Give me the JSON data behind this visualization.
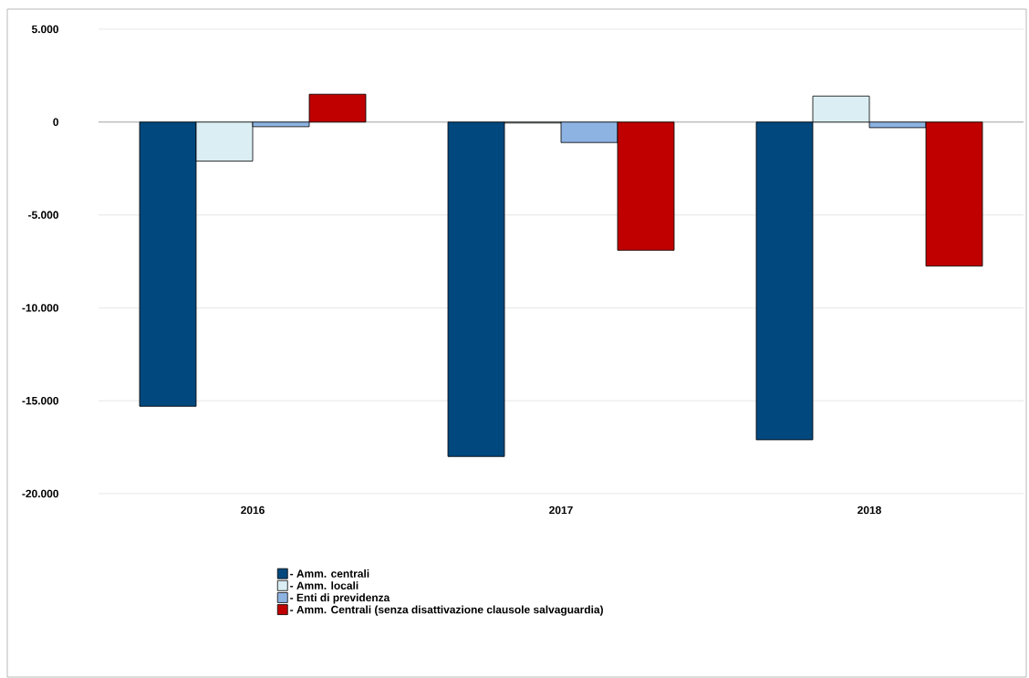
{
  "chart_data": {
    "type": "bar",
    "categories": [
      "2016",
      "2017",
      "2018"
    ],
    "series": [
      {
        "name": "- Amm. centrali",
        "color": "#00487d",
        "values": [
          -15300,
          -18000,
          -17100
        ]
      },
      {
        "name": "- Amm. locali",
        "color": "#daeef3",
        "values": [
          -2100,
          -50,
          1400
        ]
      },
      {
        "name": "- Enti di previdenza",
        "color": "#8db3e2",
        "values": [
          -250,
          -1100,
          -300
        ]
      },
      {
        "name": "- Amm. Centrali (senza disattivazione clausole salvaguardia)",
        "color": "#c00000",
        "values": [
          1500,
          -6900,
          -7750
        ]
      }
    ],
    "ylim": [
      -20000,
      5000
    ],
    "yticks": [
      {
        "value": 5000,
        "label": "5.000"
      },
      0,
      {
        "value": -5000,
        "label": "-5.000"
      },
      {
        "value": -10000,
        "label": "-10.000"
      },
      {
        "value": -15000,
        "label": "-15.000"
      },
      {
        "value": -20000,
        "label": "-20.000"
      }
    ],
    "grid": "y",
    "legend": "bottom"
  }
}
